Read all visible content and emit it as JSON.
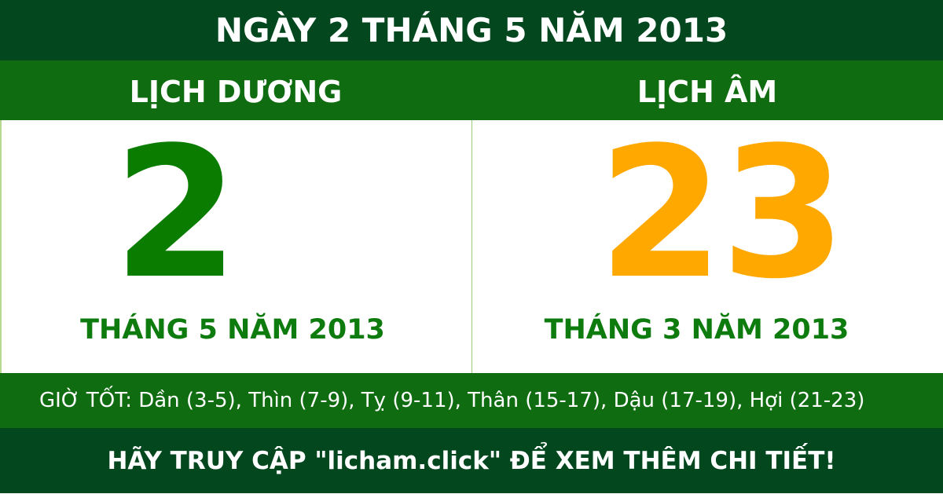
{
  "title": "NGÀY 2 THÁNG 5 NĂM 2013",
  "solar": {
    "label": "LỊCH DƯƠNG",
    "day": "2",
    "month_year": "THÁNG 5 NĂM 2013"
  },
  "lunar": {
    "label": "LỊCH ÂM",
    "day": "23",
    "month_year": "THÁNG 3 NĂM 2013"
  },
  "good_hours": "GIỜ TỐT: Dần (3-5), Thìn (7-9), Tỵ (9-11), Thân (15-17), Dậu (17-19), Hợi (21-23)",
  "footer": "HÃY TRUY CẬP \"licham.click\" ĐỂ XEM THÊM CHI TIẾT!",
  "colors": {
    "dark_green": "#03471f",
    "green": "#106c10",
    "solar_day": "#0a7d00",
    "lunar_day": "#ffa800"
  }
}
